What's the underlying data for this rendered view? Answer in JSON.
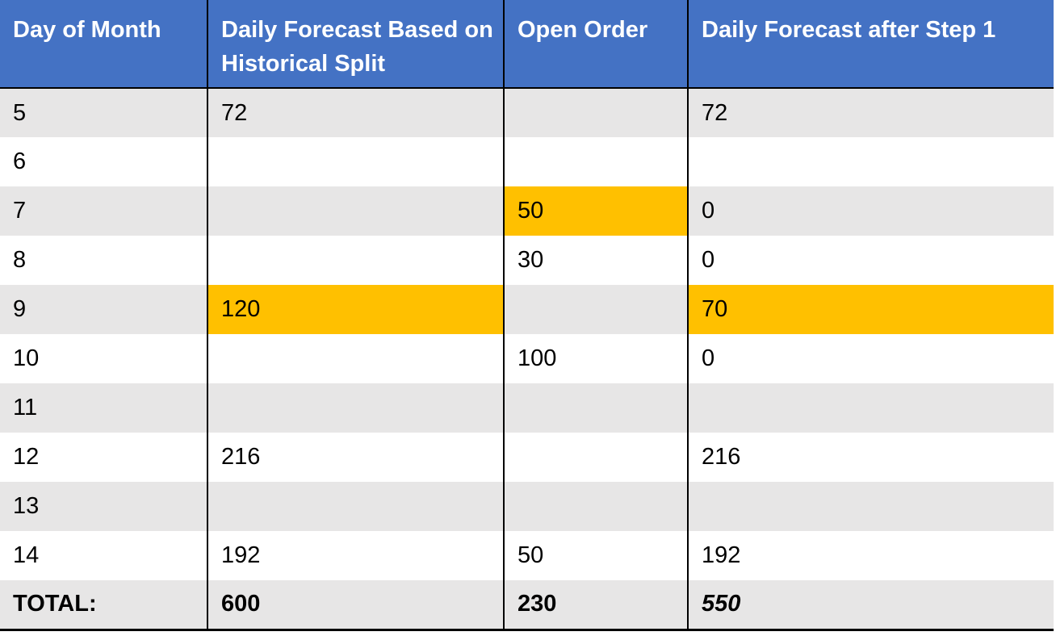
{
  "table": {
    "headers": [
      "Day of Month",
      "Daily Forecast Based on Historical Split",
      "Open Order",
      "Daily Forecast after Step 1"
    ],
    "rows": [
      [
        5,
        72,
        null,
        72
      ],
      [
        6,
        null,
        null,
        null
      ],
      [
        7,
        null,
        50,
        0
      ],
      [
        8,
        null,
        30,
        0
      ],
      [
        9,
        120,
        null,
        70
      ],
      [
        10,
        null,
        100,
        0
      ],
      [
        11,
        null,
        null,
        null
      ],
      [
        12,
        216,
        null,
        216
      ],
      [
        13,
        null,
        null,
        null
      ],
      [
        14,
        192,
        50,
        192
      ]
    ],
    "total": [
      "TOTAL:",
      600,
      230,
      550
    ]
  }
}
